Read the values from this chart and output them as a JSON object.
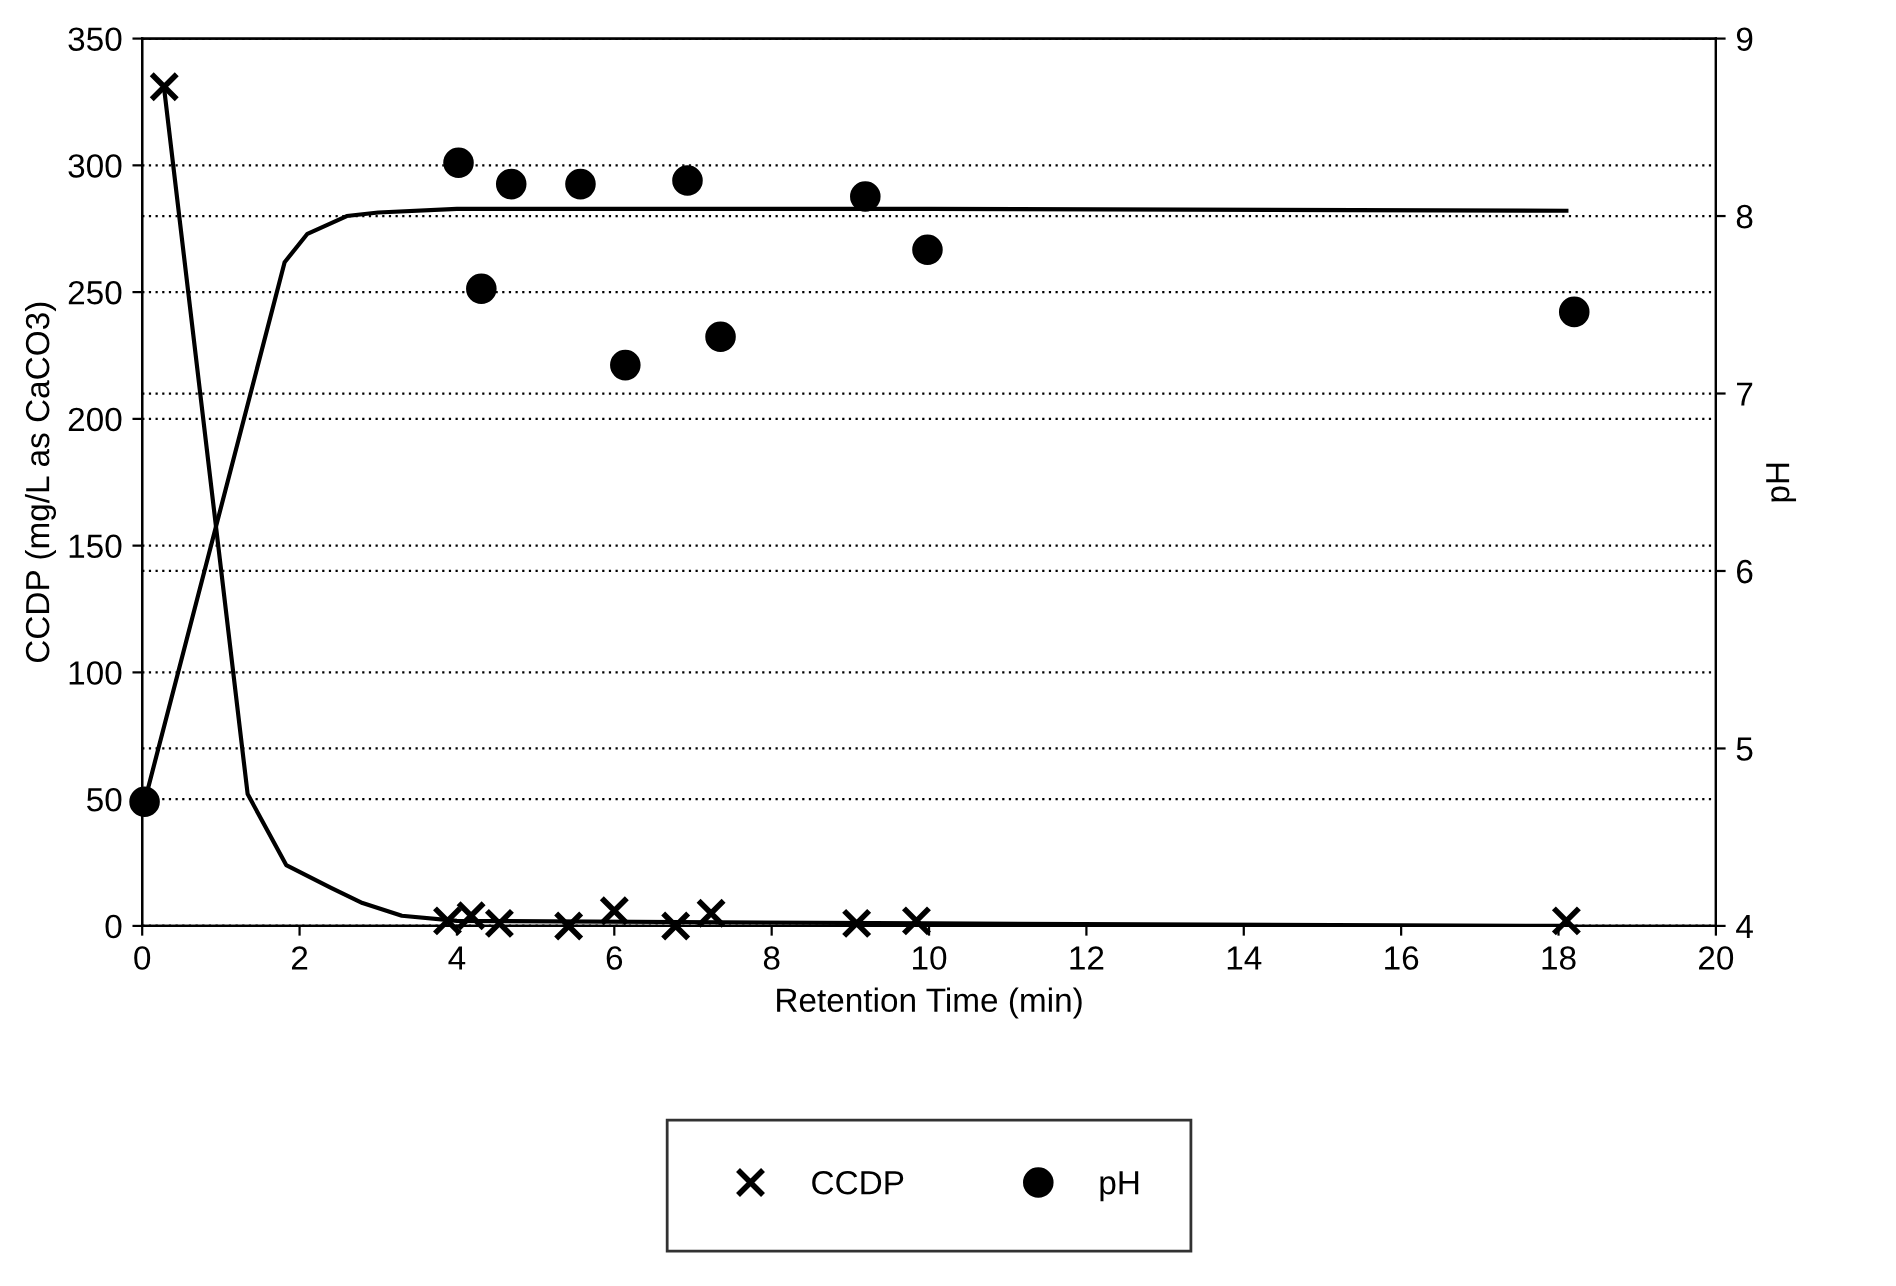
{
  "chart_data": {
    "type": "scatter",
    "xlabel": "Retention Time (min)",
    "ylabel": "CCDP (mg/L as CaCO3)",
    "y2label": "pH",
    "xlim": [
      0,
      20
    ],
    "xticks": [
      0,
      2,
      4,
      6,
      8,
      10,
      12,
      14,
      16,
      18,
      20
    ],
    "ylim": [
      0,
      350
    ],
    "yticks": [
      0,
      50,
      100,
      150,
      200,
      250,
      300,
      350
    ],
    "y2lim": [
      4,
      9
    ],
    "y2ticks": [
      4,
      5,
      6,
      7,
      8,
      9
    ],
    "grid": "y",
    "legend": "bottom",
    "series": [
      {
        "name": "CCDP",
        "marker": "cross",
        "color": "#000000",
        "x": [
          0.28,
          3.88,
          4.18,
          4.54,
          5.42,
          6.0,
          6.78,
          7.23,
          9.08,
          9.84,
          18.1
        ],
        "values": [
          331,
          2,
          4,
          1,
          0,
          6,
          0,
          5,
          1,
          2,
          2
        ]
      },
      {
        "name": "pH",
        "axis": "y2",
        "marker": "circle",
        "color": "#000000",
        "x": [
          0.03,
          4.02,
          4.31,
          4.69,
          5.57,
          6.14,
          6.93,
          7.35,
          9.19,
          9.98,
          18.2
        ],
        "values": [
          4.7,
          8.3,
          7.59,
          8.18,
          8.18,
          7.16,
          8.2,
          7.32,
          8.11,
          7.81,
          7.46
        ]
      },
      {
        "type": "line",
        "color": "#000000",
        "x": [
          0.28,
          1.34,
          1.83,
          2.4,
          2.8,
          3.3,
          4,
          10,
          18.1
        ],
        "values": [
          330,
          52,
          24,
          15,
          9,
          4,
          2,
          1,
          0
        ]
      },
      {
        "type": "line",
        "axis": "y2",
        "color": "#000000",
        "x": [
          0.03,
          1.81,
          2.1,
          2.6,
          3,
          4,
          10,
          18.1
        ],
        "values": [
          4.7,
          7.74,
          7.9,
          8.0,
          8.02,
          8.04,
          8.04,
          8.03
        ]
      }
    ]
  }
}
